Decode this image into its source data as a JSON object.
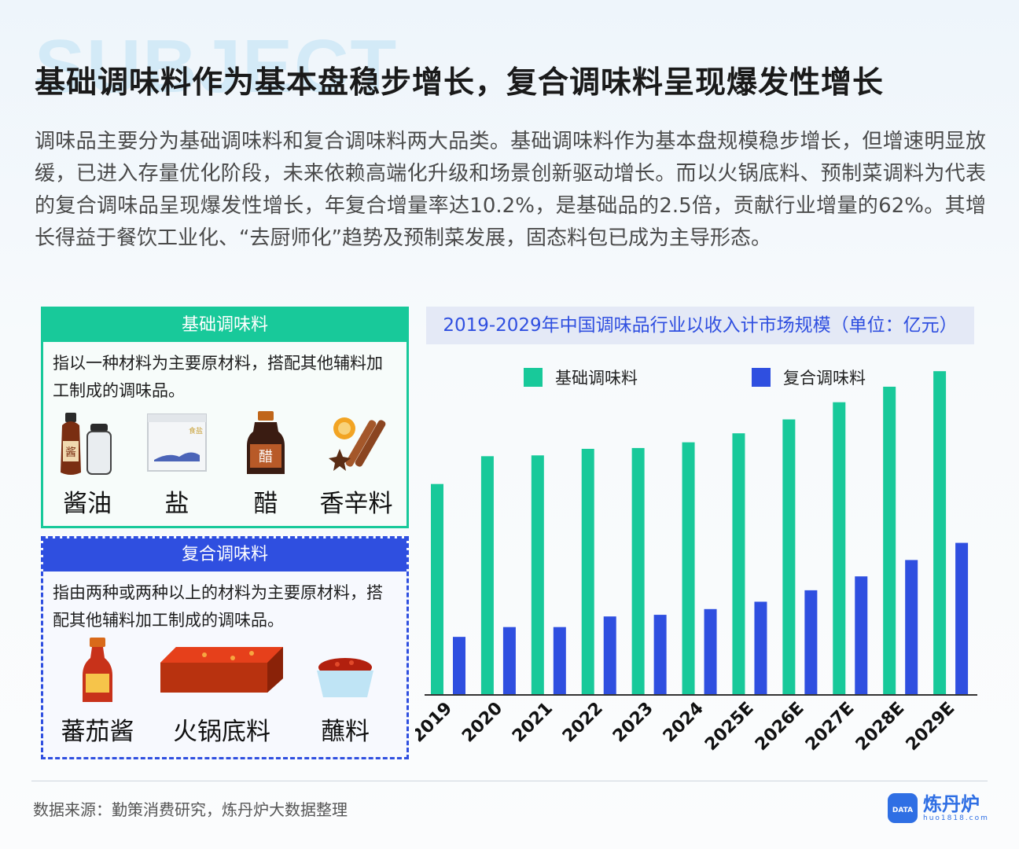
{
  "watermark": "SUBJECT",
  "title": "基础调味料作为基本盘稳步增长，复合调味料呈现爆发性增长",
  "intro": "调味品主要分为基础调味料和复合调味料两大品类。基础调味料作为基本盘规模稳步增长，但增速明显放缓，已进入存量优化阶段，未来依赖高端化升级和场景创新驱动增长。而以火锅底料、预制菜调料为代表的复合调味品呈现爆发性增长，年复合增量率达10.2%，是基础品的2.5倍，贡献行业增量的62%。其增长得益于餐饮工业化、“去厨师化”趋势及预制菜发展，固态料包已成为主导形态。",
  "basic_card": {
    "title": "基础调味料",
    "desc": "指以一种材料为主要原材料，搭配其他辅料加工制成的调味品。",
    "items": [
      {
        "label": "酱油",
        "icon": "soy-sauce-icon"
      },
      {
        "label": "盐",
        "icon": "salt-icon"
      },
      {
        "label": "醋",
        "icon": "vinegar-icon"
      },
      {
        "label": "香辛料",
        "icon": "spices-icon"
      }
    ],
    "icon_text": {
      "soy": "酱",
      "salt": "食盐",
      "vinegar": "醋"
    }
  },
  "compound_card": {
    "title": "复合调味料",
    "desc": "指由两种或两种以上的材料为主要原材料，搭配其他辅料加工制成的调味品。",
    "items": [
      {
        "label": "蕃茄酱",
        "icon": "ketchup-icon"
      },
      {
        "label": "火锅底料",
        "icon": "hotpot-base-icon"
      },
      {
        "label": "蘸料",
        "icon": "dipping-sauce-icon"
      }
    ]
  },
  "chart_data": {
    "type": "bar",
    "title": "2019-2029年中国调味品行业以收入计市场规模（单位：亿元）",
    "categories": [
      "2019",
      "2020",
      "2021",
      "2022",
      "2023",
      "2024",
      "2025E",
      "2026E",
      "2027E",
      "2028E",
      "2029E"
    ],
    "series": [
      {
        "name": "基础调味料",
        "color": "#18c99a",
        "values": [
          2580,
          2920,
          2930,
          3010,
          3020,
          3090,
          3200,
          3370,
          3580,
          3770,
          3960
        ]
      },
      {
        "name": "复合调味料",
        "color": "#2f4fe0",
        "values": [
          710,
          830,
          830,
          960,
          980,
          1050,
          1140,
          1280,
          1450,
          1650,
          1860
        ]
      }
    ],
    "ylim": [
      0,
      4000
    ],
    "legend": "top",
    "grid": false
  },
  "source": "数据来源：勤策消费研究，炼丹炉大数据整理",
  "logo": {
    "name": "炼丹炉",
    "url": "huo1818.com",
    "badge": "DATA"
  },
  "colors": {
    "green": "#18c99a",
    "blue": "#2f4fe0"
  }
}
